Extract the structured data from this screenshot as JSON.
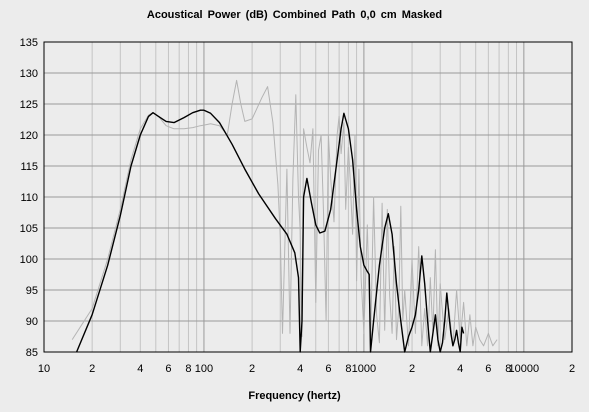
{
  "title": "Acoustical Power (dB)   Combined   Path 0,0 cm   Masked",
  "chart_data": {
    "type": "line",
    "title": "Acoustical Power (dB)   Combined   Path 0,0 cm   Masked",
    "xlabel": "Frequency (hertz)",
    "ylabel": "",
    "x_scale": "log",
    "xlim": [
      10,
      20000
    ],
    "ylim": [
      85,
      135
    ],
    "grid": true,
    "legend": "none",
    "y_ticks": [
      85,
      90,
      95,
      100,
      105,
      110,
      115,
      120,
      125,
      130,
      135
    ],
    "x_ticks": [
      {
        "value": 10,
        "label": "10"
      },
      {
        "value": 20,
        "label": "2"
      },
      {
        "value": 40,
        "label": "4"
      },
      {
        "value": 60,
        "label": "6"
      },
      {
        "value": 80,
        "label": "8"
      },
      {
        "value": 100,
        "label": "100"
      },
      {
        "value": 200,
        "label": "2"
      },
      {
        "value": 400,
        "label": "4"
      },
      {
        "value": 600,
        "label": "6"
      },
      {
        "value": 800,
        "label": "8"
      },
      {
        "value": 1000,
        "label": "1000"
      },
      {
        "value": 2000,
        "label": "2"
      },
      {
        "value": 4000,
        "label": "4"
      },
      {
        "value": 6000,
        "label": "6"
      },
      {
        "value": 8000,
        "label": "8"
      },
      {
        "value": 10000,
        "label": "10000"
      },
      {
        "value": 20000,
        "label": "2"
      }
    ],
    "series": [
      {
        "color": "#000000",
        "x": [
          16,
          20,
          25,
          30,
          35,
          40,
          45,
          48,
          52,
          58,
          65,
          75,
          85,
          95,
          100,
          110,
          125,
          150,
          180,
          220,
          280,
          330,
          370,
          390,
          400,
          410,
          420,
          440,
          470,
          500,
          530,
          570,
          620,
          680,
          720,
          750,
          800,
          850,
          900,
          950,
          1000,
          1050,
          1080,
          1100,
          1150,
          1250,
          1350,
          1420,
          1500,
          1600,
          1700,
          1800,
          1900,
          2000,
          2100,
          2200,
          2300,
          2400,
          2500,
          2600,
          2700,
          2800,
          2900,
          3000,
          3100,
          3200,
          3300,
          3400,
          3500,
          3600,
          3700,
          3800,
          3900,
          4000,
          4100,
          4200
        ],
        "y": [
          85,
          91,
          99,
          107,
          115,
          120,
          123,
          123.6,
          123,
          122.2,
          122,
          122.8,
          123.6,
          124,
          124,
          123.5,
          122,
          118.5,
          114.5,
          110.5,
          106.5,
          104,
          101,
          97,
          85,
          90,
          110,
          113,
          109,
          105.5,
          104.2,
          104.5,
          108,
          116,
          121,
          123.5,
          121,
          116,
          108,
          102,
          99,
          98,
          97.5,
          85,
          90,
          99,
          105,
          107.3,
          104,
          96,
          90,
          85,
          87.5,
          89,
          91,
          95,
          100.5,
          96,
          90,
          85,
          88,
          91,
          87,
          85,
          86.5,
          90,
          94.5,
          91,
          88,
          86,
          87,
          88.5,
          86.5,
          85,
          89,
          88
        ]
      },
      {
        "color": "#b4b4b4",
        "x": [
          15,
          20,
          25,
          30,
          35,
          40,
          45,
          48,
          52,
          58,
          65,
          75,
          85,
          95,
          100,
          110,
          125,
          140,
          150,
          160,
          170,
          180,
          200,
          230,
          250,
          270,
          290,
          300,
          310,
          330,
          345,
          360,
          375,
          390,
          400,
          410,
          420,
          440,
          460,
          480,
          500,
          520,
          540,
          560,
          580,
          600,
          620,
          650,
          680,
          700,
          720,
          750,
          770,
          800,
          820,
          850,
          880,
          900,
          930,
          960,
          1000,
          1050,
          1100,
          1150,
          1200,
          1250,
          1300,
          1350,
          1400,
          1450,
          1500,
          1550,
          1600,
          1650,
          1700,
          1750,
          1800,
          1900,
          2000,
          2100,
          2200,
          2300,
          2400,
          2500,
          2600,
          2700,
          2800,
          2900,
          3000,
          3200,
          3400,
          3600,
          3800,
          4000,
          4200,
          4400,
          4600,
          4800,
          5000,
          5300,
          5600,
          6000,
          6400,
          6800
        ],
        "y": [
          87,
          92,
          100,
          108,
          116,
          121,
          123.2,
          123.6,
          123,
          121.5,
          121,
          121,
          121.2,
          121.5,
          121.6,
          121.8,
          121.5,
          120,
          125,
          128.8,
          125,
          122.2,
          122.6,
          126,
          127.8,
          122,
          112,
          103.5,
          88,
          114.5,
          88,
          113,
          126.5,
          110,
          104.5,
          87.5,
          121,
          118,
          115.5,
          121,
          93,
          117.5,
          120,
          107,
          90,
          120,
          113,
          106,
          120,
          123,
          117,
          122,
          108,
          118,
          113,
          104,
          120,
          96.5,
          114.5,
          97,
          88,
          105.5,
          86,
          110,
          91,
          86.5,
          109,
          88.5,
          108,
          94,
          88,
          102,
          87,
          92,
          108.5,
          90,
          95,
          86,
          100,
          88,
          102,
          86,
          92,
          86,
          97,
          88,
          101.5,
          86,
          96,
          87,
          92,
          86,
          95,
          87,
          93,
          86,
          91,
          86,
          89,
          87,
          86,
          88,
          86,
          87
        ]
      }
    ]
  }
}
